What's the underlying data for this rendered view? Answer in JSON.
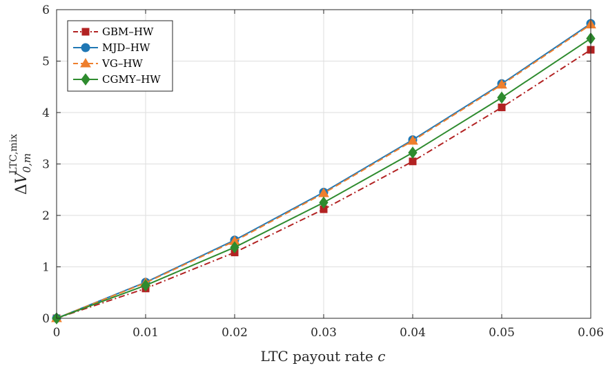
{
  "chart_data": {
    "type": "line",
    "title": "",
    "xlabel": {
      "main": "LTC payout rate ",
      "var": "c"
    },
    "ylabel": {
      "delta": "Δ",
      "var": "V",
      "sup": "LTC,mix",
      "sub": "0,m"
    },
    "xlim": [
      0,
      0.06
    ],
    "ylim": [
      0,
      6
    ],
    "x_ticks": [
      0,
      0.01,
      0.02,
      0.03,
      0.04,
      0.05,
      0.06
    ],
    "x_tick_labels": [
      "0",
      "0.01",
      "0.02",
      "0.03",
      "0.04",
      "0.05",
      "0.06"
    ],
    "y_ticks": [
      0,
      1,
      2,
      3,
      4,
      5,
      6
    ],
    "y_tick_labels": [
      "0",
      "1",
      "2",
      "3",
      "4",
      "5",
      "6"
    ],
    "grid": true,
    "legend_position": "top-left",
    "x": [
      0,
      0.01,
      0.02,
      0.03,
      0.04,
      0.05,
      0.06
    ],
    "series": [
      {
        "name": "GBM–HW",
        "values": [
          0,
          0.58,
          1.28,
          2.12,
          3.05,
          4.1,
          5.22
        ],
        "color": "#b22222",
        "marker": "square",
        "dash": "dashdot"
      },
      {
        "name": "MJD–HW",
        "values": [
          0,
          0.7,
          1.52,
          2.45,
          3.47,
          4.56,
          5.73
        ],
        "color": "#1f77b4",
        "marker": "circle",
        "dash": "solid"
      },
      {
        "name": "VG–HW",
        "values": [
          0,
          0.69,
          1.5,
          2.43,
          3.45,
          4.54,
          5.71
        ],
        "color": "#ee7f2d",
        "marker": "triangle",
        "dash": "dashed"
      },
      {
        "name": "CGMY–HW",
        "values": [
          0,
          0.64,
          1.38,
          2.25,
          3.22,
          4.29,
          5.44
        ],
        "color": "#2e8b2e",
        "marker": "diamond",
        "dash": "solid"
      }
    ]
  }
}
